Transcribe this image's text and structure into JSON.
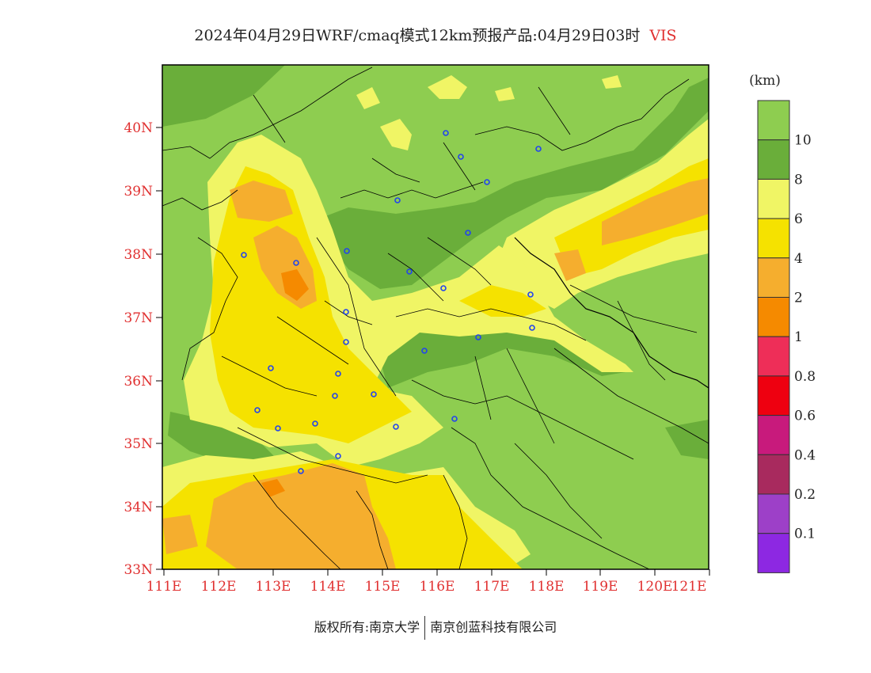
{
  "header": {
    "title": "2024年04月29日WRF/cmaq模式12km预报产品:04月29日03时",
    "variable": "VIS"
  },
  "map": {
    "lat_labels": [
      "40N",
      "39N",
      "38N",
      "37N",
      "36N",
      "35N",
      "34N",
      "33N"
    ],
    "lon_labels": [
      "111E",
      "112E",
      "113E",
      "114E",
      "115E",
      "116E",
      "117E",
      "118E",
      "119E",
      "120E",
      "121E"
    ]
  },
  "legend": {
    "unit": "(km)",
    "labels": [
      "10",
      "8",
      "6",
      "4",
      "2",
      "1",
      "0.8",
      "0.6",
      "0.4",
      "0.2",
      "0.1"
    ],
    "colors": [
      "#8ecd50",
      "#6aae3a",
      "#f0f565",
      "#f5e200",
      "#f5ae2e",
      "#f58a00",
      "#ee2e58",
      "#ee0010",
      "#c81a7c",
      "#a82a5e",
      "#9d40c8",
      "#8d28e2"
    ]
  },
  "footer": {
    "copyright": "版权所有:南京大学",
    "company": "南京创蓝科技有限公司"
  },
  "colors": {
    "axis_label": "#e03030",
    "station": "#2244ee"
  }
}
